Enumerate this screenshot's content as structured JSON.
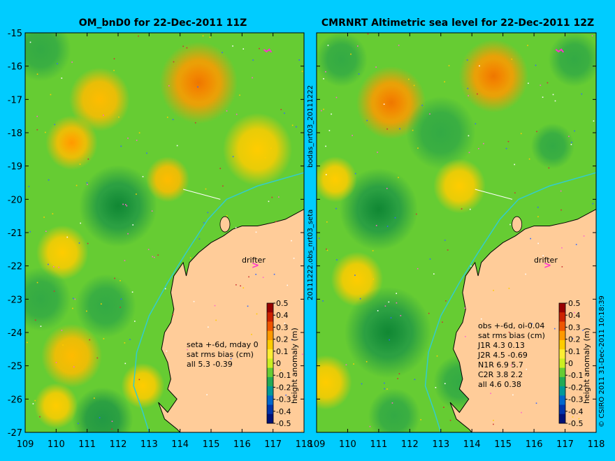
{
  "colors": {
    "background": "#00ccff",
    "land": "#ffcc99",
    "ocean_mid": "#66cc33",
    "ocean_low": "#33aa44",
    "ocean_high": "#ffcc00",
    "ocean_peak": "#ff9900",
    "drifter": "#ff33cc",
    "coast_current": "#33cccc"
  },
  "y_ticks": [
    "-15",
    "-16",
    "-17",
    "-18",
    "-19",
    "-20",
    "-21",
    "-22",
    "-23",
    "-24",
    "-25",
    "-26",
    "-27"
  ],
  "x_ticks": [
    "109",
    "110",
    "111",
    "112",
    "113",
    "114",
    "115",
    "116",
    "117",
    "118"
  ],
  "colorbar": {
    "label": "height anomaly (m)",
    "ticks": [
      "0.5",
      "0.4",
      "0.3",
      "0.2",
      "0.1",
      "0",
      "-0.1",
      "-0.2",
      "-0.3",
      "-0.4",
      "-0.5"
    ]
  },
  "left_panel": {
    "title": "OM_bnD0 for 22-Dec-2011 11Z",
    "drifter_label": "drifter",
    "stats": [
      "seta +-6d, mday 0",
      "sat rms bias (cm)",
      "all 5.3 -0.39"
    ]
  },
  "right_panel": {
    "title": "CMRNRT Altimetric sea level  for 22-Dec-2011 12Z",
    "drifter_label": "drifter",
    "stats": [
      "obs +-6d, oi-0.04",
      "sat rms bias (cm)",
      "J1R   4.3  0.13",
      "J2R   4.5  -0.69",
      "N1R   6.9  5.7",
      "C2R   3.8  2.2",
      "all 4.6  0.38"
    ]
  },
  "side_labels": {
    "middle_top": "bodas_nrt03_20111222",
    "middle_bottom": "20111222.obs_nrt03_seta",
    "right": "© CSIRO 2011  31-Dec-2011 10:18:39"
  },
  "field_left": [
    {
      "lon": 109.5,
      "lat": -15.5,
      "amp": -0.12,
      "r": 0.7
    },
    {
      "lon": 114.6,
      "lat": -16.5,
      "amp": 0.28,
      "r": 0.9
    },
    {
      "lon": 111.4,
      "lat": -17.0,
      "amp": 0.12,
      "r": 0.7
    },
    {
      "lon": 110.5,
      "lat": -18.3,
      "amp": 0.16,
      "r": 0.6
    },
    {
      "lon": 112.0,
      "lat": -20.2,
      "amp": -0.16,
      "r": 0.9
    },
    {
      "lon": 113.6,
      "lat": -19.4,
      "amp": 0.14,
      "r": 0.5
    },
    {
      "lon": 110.2,
      "lat": -21.6,
      "amp": 0.1,
      "r": 0.6
    },
    {
      "lon": 109.5,
      "lat": -23.0,
      "amp": -0.13,
      "r": 0.7
    },
    {
      "lon": 111.6,
      "lat": -23.2,
      "amp": -0.1,
      "r": 0.7
    },
    {
      "lon": 110.5,
      "lat": -24.7,
      "amp": 0.12,
      "r": 0.7
    },
    {
      "lon": 111.5,
      "lat": -26.6,
      "amp": -0.15,
      "r": 0.7
    },
    {
      "lon": 110.0,
      "lat": -26.2,
      "amp": 0.1,
      "r": 0.5
    },
    {
      "lon": 112.8,
      "lat": -25.6,
      "amp": 0.08,
      "r": 0.5
    },
    {
      "lon": 116.5,
      "lat": -18.5,
      "amp": 0.06,
      "r": 0.8
    }
  ],
  "field_right": [
    {
      "lon": 114.7,
      "lat": -16.3,
      "amp": 0.27,
      "r": 0.8
    },
    {
      "lon": 111.4,
      "lat": -17.1,
      "amp": 0.28,
      "r": 0.8
    },
    {
      "lon": 109.8,
      "lat": -15.8,
      "amp": -0.12,
      "r": 0.6
    },
    {
      "lon": 117.3,
      "lat": -15.8,
      "amp": -0.12,
      "r": 0.6
    },
    {
      "lon": 113.0,
      "lat": -18.0,
      "amp": -0.1,
      "r": 0.8
    },
    {
      "lon": 116.6,
      "lat": -18.4,
      "amp": -0.12,
      "r": 0.5
    },
    {
      "lon": 111.0,
      "lat": -20.3,
      "amp": -0.18,
      "r": 0.9
    },
    {
      "lon": 113.6,
      "lat": -19.6,
      "amp": 0.1,
      "r": 0.6
    },
    {
      "lon": 109.6,
      "lat": -19.4,
      "amp": 0.08,
      "r": 0.5
    },
    {
      "lon": 110.3,
      "lat": -22.4,
      "amp": 0.1,
      "r": 0.6
    },
    {
      "lon": 111.3,
      "lat": -24.0,
      "amp": -0.2,
      "r": 1.0
    },
    {
      "lon": 109.3,
      "lat": -25.5,
      "amp": 0.1,
      "r": 0.6
    },
    {
      "lon": 111.5,
      "lat": -26.5,
      "amp": -0.12,
      "r": 0.6
    },
    {
      "lon": 113.6,
      "lat": -25.5,
      "amp": -0.1,
      "r": 0.6
    }
  ],
  "coastline": [
    [
      118,
      -20.3
    ],
    [
      117.4,
      -20.6
    ],
    [
      117.0,
      -20.7
    ],
    [
      116.5,
      -20.8
    ],
    [
      116.0,
      -20.8
    ],
    [
      115.7,
      -20.9
    ],
    [
      115.4,
      -21.1
    ],
    [
      115.0,
      -21.3
    ],
    [
      114.6,
      -21.6
    ],
    [
      114.3,
      -21.9
    ],
    [
      114.2,
      -22.3
    ],
    [
      114.1,
      -21.9
    ],
    [
      113.8,
      -22.3
    ],
    [
      113.7,
      -22.8
    ],
    [
      113.8,
      -23.3
    ],
    [
      113.7,
      -23.7
    ],
    [
      113.5,
      -24.0
    ],
    [
      113.4,
      -24.5
    ],
    [
      113.6,
      -24.9
    ],
    [
      113.7,
      -25.4
    ],
    [
      113.6,
      -25.7
    ],
    [
      113.9,
      -26.0
    ],
    [
      113.6,
      -26.4
    ],
    [
      113.3,
      -26.1
    ],
    [
      113.5,
      -26.6
    ],
    [
      113.9,
      -26.9
    ],
    [
      114.0,
      -27.0
    ],
    [
      118,
      -27.0
    ]
  ]
}
